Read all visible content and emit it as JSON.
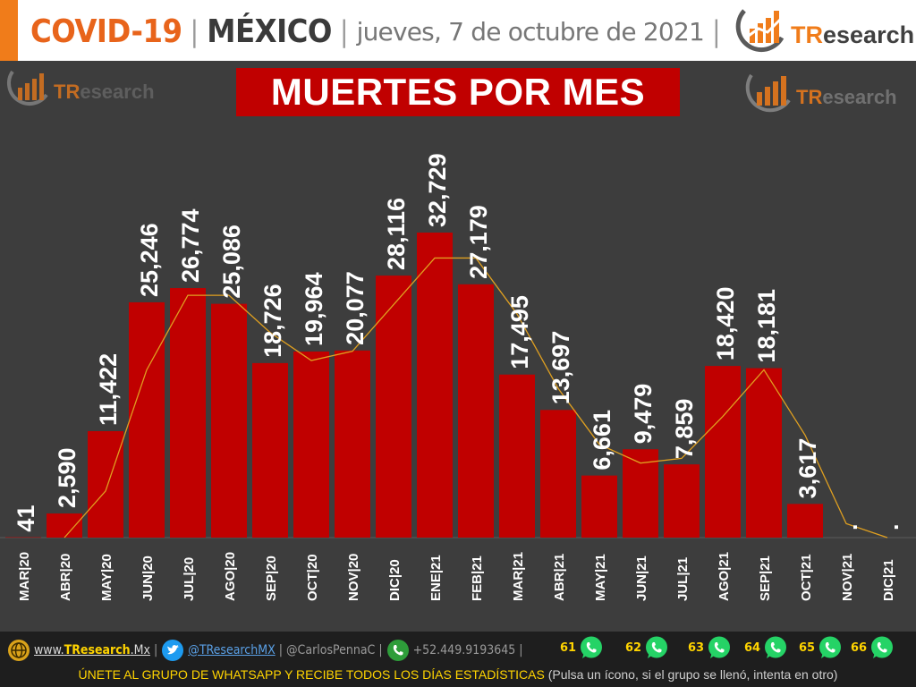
{
  "header": {
    "covid": "COVID-19",
    "separator": "|",
    "country": "MÉXICO",
    "date": "jueves, 7 de octubre de 2021",
    "brand": "TResearch"
  },
  "colors": {
    "accent_orange": "#e8641b",
    "bar": "#c00000",
    "background": "#3d3d3d",
    "trend_line": "#e0a020",
    "footer_yellow": "#ffd400",
    "whatsapp_green": "#25d366"
  },
  "chart_data": {
    "type": "bar",
    "title": "MUERTES POR MES",
    "categories": [
      "MAR|20",
      "ABR|20",
      "MAY|20",
      "JUN|20",
      "JUL|20",
      "AGO|20",
      "SEP|20",
      "OCT|20",
      "NOV|20",
      "DIC|20",
      "ENE|21",
      "FEB|21",
      "MAR|21",
      "ABR|21",
      "MAY|21",
      "JUN|21",
      "JUL|21",
      "AGO|21",
      "SEP|21",
      "OCT|21",
      "NOV|21",
      "DIC|21"
    ],
    "values": [
      41,
      2590,
      11422,
      25246,
      26774,
      25086,
      18726,
      19964,
      20077,
      28116,
      32729,
      27179,
      17495,
      13697,
      6661,
      9479,
      7859,
      18420,
      18181,
      3617,
      null,
      null
    ],
    "value_labels": [
      "41",
      "2,590",
      "11,422",
      "25,246",
      "26,774",
      "25,086",
      "18,726",
      "19,964",
      "20,077",
      "28,116",
      "32,729",
      "27,179",
      "17,495",
      "13,697",
      "6,661",
      "9,479",
      "7,859",
      "18,420",
      "18,181",
      "3,617",
      ".",
      "."
    ],
    "trend": {
      "type": "line",
      "values": [
        null,
        0,
        5000,
        18000,
        26000,
        26000,
        22000,
        19000,
        20000,
        25000,
        30000,
        30000,
        24000,
        16000,
        10000,
        8000,
        8500,
        13000,
        18000,
        11000,
        1500,
        0
      ]
    },
    "ylim": [
      0,
      34000
    ],
    "grid": false,
    "legend": "none",
    "watermark": "TResearch"
  },
  "footer": {
    "website_prefix": "www.",
    "website_brand": "TResearch",
    "website_suffix": ".Mx",
    "twitter": "@TResearchMX",
    "handle": "@CarlosPennaC",
    "phone": "+52.449.9193645",
    "separator": "|",
    "whatsapp_groups": [
      "61",
      "62",
      "63",
      "64",
      "65",
      "66"
    ],
    "cta": "ÚNETE AL GRUPO DE WHATSAPP Y RECIBE TODOS LOS DÍAS ESTADÍSTICAS",
    "note": "(Pulsa un ícono, si el grupo se llenó, intenta en otro)"
  }
}
